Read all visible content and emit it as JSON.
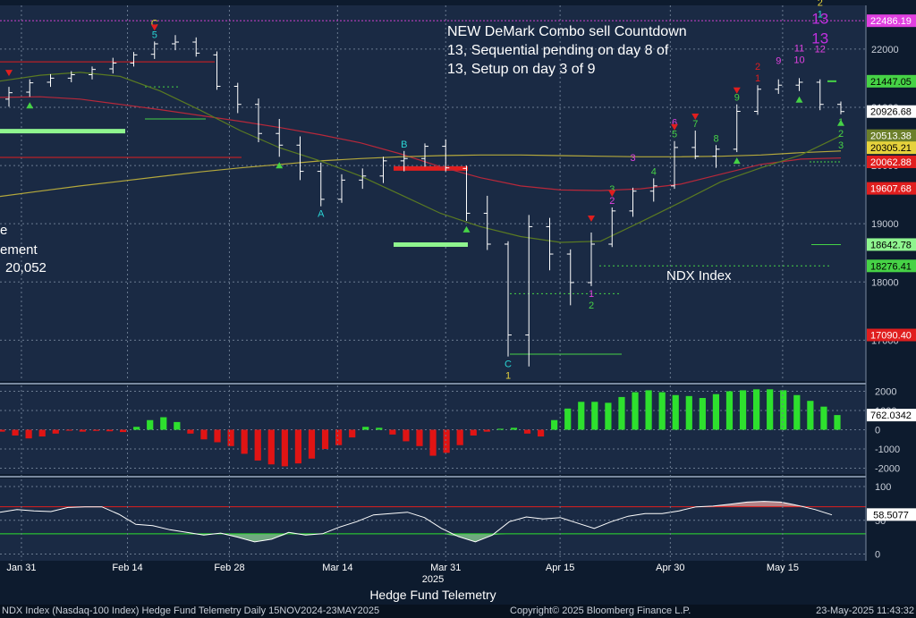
{
  "chart_data": {
    "type": "candlestick",
    "title": "NDX Index",
    "annotation_lines": [
      "NEW DeMark Combo sell Countdown",
      "13, Sequential pending on day 8 of",
      "13, Setup on day 3 of 9"
    ],
    "left_cut_text": [
      "e",
      "ement",
      "20,052"
    ],
    "x_labels": [
      "Jan 31",
      "Feb 14",
      "Feb 28",
      "Mar 14",
      "Mar 31",
      "Apr 15",
      "Apr 30",
      "May 15"
    ],
    "x_year_label": "2025",
    "price_ylim": [
      16300,
      22750
    ],
    "price_ticks": [
      17000,
      18000,
      19000,
      20000,
      21000,
      22000
    ],
    "price_tick_labels": [
      "17000",
      "18000",
      "19000",
      "20000",
      "21000",
      "22000"
    ],
    "price_last": 20926.68,
    "price_labels": [
      {
        "text": "22486.19",
        "value": 22486.19,
        "color": "#e040e0"
      },
      {
        "text": "21447.05",
        "value": 21447.05,
        "color": "#46d246"
      },
      {
        "text": "20926.68",
        "value": 20926.68,
        "color": "#ffffff"
      },
      {
        "text": "20513.38",
        "value": 20513.38,
        "color": "#6c7f2a"
      },
      {
        "text": "20305.21",
        "value": 20305.21,
        "color": "#e6d23c"
      },
      {
        "text": "20062.88",
        "value": 20062.88,
        "color": "#e01e1e"
      },
      {
        "text": "19607.68",
        "value": 19607.68,
        "color": "#e01e1e"
      },
      {
        "text": "18642.78",
        "value": 18642.78,
        "color": "#8ff58f"
      },
      {
        "text": "18276.41",
        "value": 18276.41,
        "color": "#46d246"
      },
      {
        "text": "17090.40",
        "value": 17090.4,
        "color": "#e01e1e"
      }
    ],
    "sma_yellow": [
      19470,
      19560,
      19650,
      19730,
      19810,
      19890,
      19960,
      20020,
      20080,
      20120,
      20150,
      20170,
      20180,
      20180,
      20170,
      20160,
      20150,
      20150,
      20160,
      20180,
      20220,
      20250
    ],
    "sma_red": [
      21170,
      21180,
      21140,
      21050,
      20960,
      20860,
      20760,
      20650,
      20530,
      20390,
      20200,
      19980,
      19790,
      19650,
      19580,
      19570,
      19600,
      19680,
      19850,
      20020,
      20110,
      20130
    ],
    "sma_olive": [
      21450,
      21550,
      21600,
      21530,
      21280,
      20950,
      20600,
      20300,
      20080,
      19820,
      19500,
      19180,
      18950,
      18780,
      18680,
      18700,
      19030,
      19370,
      19720,
      19960,
      20180,
      20513
    ],
    "bars": [
      [
        21140,
        21350,
        21010,
        21250
      ],
      [
        21260,
        21480,
        21180,
        21420
      ],
      [
        21430,
        21570,
        21350,
        21500
      ],
      [
        21500,
        21620,
        21430,
        21560
      ],
      [
        21560,
        21700,
        21480,
        21650
      ],
      [
        21660,
        21850,
        21580,
        21760
      ],
      [
        21760,
        21950,
        21700,
        21900
      ],
      [
        21910,
        22130,
        21830,
        22090
      ],
      [
        22090,
        22240,
        21980,
        22120
      ],
      [
        22120,
        22200,
        21870,
        21930
      ],
      [
        21900,
        21960,
        21300,
        21360
      ],
      [
        21360,
        21420,
        20900,
        21050
      ],
      [
        21050,
        21150,
        20400,
        20550
      ],
      [
        20550,
        20800,
        20150,
        20350
      ],
      [
        20350,
        20500,
        19750,
        19900
      ],
      [
        19900,
        20050,
        19300,
        19420
      ],
      [
        19420,
        19850,
        19360,
        19750
      ],
      [
        19750,
        19950,
        19600,
        19820
      ],
      [
        19820,
        20150,
        19700,
        20080
      ],
      [
        20080,
        20250,
        19900,
        20120
      ],
      [
        20120,
        20380,
        19980,
        20330
      ],
      [
        20330,
        20450,
        19900,
        19960
      ],
      [
        19950,
        20000,
        19050,
        19180
      ],
      [
        19180,
        19480,
        18550,
        18650
      ],
      [
        18650,
        18700,
        16720,
        17090
      ],
      [
        17090,
        19150,
        16550,
        18950
      ],
      [
        18950,
        19100,
        18200,
        18480
      ],
      [
        18480,
        18560,
        17600,
        17990
      ],
      [
        17990,
        18850,
        17930,
        18650
      ],
      [
        18650,
        19280,
        18600,
        19220
      ],
      [
        19220,
        19620,
        19120,
        19560
      ],
      [
        19560,
        19780,
        19380,
        19650
      ],
      [
        19650,
        20420,
        19600,
        20310
      ],
      [
        20310,
        20600,
        20110,
        20160
      ],
      [
        20160,
        20350,
        19960,
        20280
      ],
      [
        20280,
        21050,
        20230,
        20930
      ],
      [
        20930,
        21380,
        20870,
        21310
      ],
      [
        21310,
        21480,
        21230,
        21380
      ],
      [
        21380,
        21500,
        21280,
        21430
      ],
      [
        21430,
        21480,
        20950,
        21050
      ],
      [
        21050,
        21100,
        20880,
        20927
      ]
    ],
    "td_labels": [
      {
        "text": "C",
        "bar": 7,
        "pos": "above",
        "row": 2,
        "color": "#e6d23c"
      },
      {
        "text": "5",
        "bar": 7,
        "pos": "above",
        "row": 1,
        "color": "#2ad4d4"
      },
      {
        "text": "B",
        "bar": 19,
        "pos": "above",
        "row": 1,
        "color": "#2ad4d4"
      },
      {
        "text": "A",
        "bar": 15,
        "pos": "below",
        "row": 1,
        "color": "#2ad4d4"
      },
      {
        "text": "C",
        "bar": 24,
        "pos": "below",
        "row": 1,
        "color": "#2ad4d4"
      },
      {
        "text": "1",
        "bar": 24,
        "pos": "below",
        "row": 2,
        "color": "#e6d23c"
      },
      {
        "text": "1",
        "bar": 28,
        "pos": "below",
        "row": 1,
        "color": "#e040e0"
      },
      {
        "text": "2",
        "bar": 28,
        "pos": "below",
        "row": 2,
        "color": "#46d246"
      },
      {
        "text": "2",
        "bar": 29,
        "pos": "above",
        "row": 1,
        "color": "#e040e0"
      },
      {
        "text": "3",
        "bar": 29,
        "pos": "above",
        "row": 2,
        "color": "#46d246"
      },
      {
        "text": "3",
        "bar": 30,
        "pos": "above",
        "row": 3,
        "color": "#e040e0"
      },
      {
        "text": "4",
        "bar": 31,
        "pos": "above",
        "row": 1,
        "color": "#46d246"
      },
      {
        "text": "5",
        "bar": 32,
        "pos": "above",
        "row": 1,
        "color": "#46d246"
      },
      {
        "text": "6",
        "bar": 32,
        "pos": "above",
        "row": 2,
        "color": "#e040e0"
      },
      {
        "text": "7",
        "bar": 33,
        "pos": "above",
        "row": 1,
        "color": "#46d246"
      },
      {
        "text": "8",
        "bar": 34,
        "pos": "above",
        "row": 1,
        "color": "#46d246"
      },
      {
        "text": "9",
        "bar": 35,
        "pos": "above",
        "row": 1,
        "color": "#46d246"
      },
      {
        "text": "1",
        "bar": 36,
        "pos": "above",
        "row": 1,
        "color": "#e01e1e"
      },
      {
        "text": "2",
        "bar": 36,
        "pos": "above",
        "row": 2,
        "color": "#e01e1e"
      },
      {
        "text": "9",
        "bar": 37,
        "pos": "above",
        "row": 2,
        "color": "#e040e0"
      },
      {
        "text": "10",
        "bar": 38,
        "pos": "above",
        "row": 2,
        "color": "#e040e0"
      },
      {
        "text": "11",
        "bar": 38,
        "pos": "above",
        "row": 3,
        "color": "#e040e0"
      },
      {
        "text": "12",
        "bar": 39,
        "pos": "above",
        "row": 3,
        "color": "#e040e0"
      },
      {
        "text": "13",
        "bar": 39,
        "pos": "above",
        "row": 4,
        "color": "#c030e0"
      },
      {
        "text": "13",
        "bar": 39,
        "pos": "above",
        "row": 5,
        "color": "#c030e0"
      },
      {
        "text": "1",
        "bar": 39,
        "pos": "above",
        "row": 6,
        "color": "#2ad4d4"
      },
      {
        "text": "2",
        "bar": 39,
        "pos": "above",
        "row": 7,
        "color": "#e6d23c"
      },
      {
        "text": "1",
        "bar": 40,
        "pos": "below",
        "row": 1,
        "color": "#46d246"
      },
      {
        "text": "2",
        "bar": 40,
        "pos": "below",
        "row": 2,
        "color": "#46d246"
      },
      {
        "text": "3",
        "bar": 40,
        "pos": "below",
        "row": 3,
        "color": "#46d246"
      }
    ],
    "histogram": {
      "ylim": [
        -2300,
        2300
      ],
      "ticks": [
        -2000,
        -1000,
        0,
        1000,
        2000
      ],
      "tick_labels": [
        "-2000",
        "-1000",
        "0",
        "1000",
        "2000"
      ],
      "last": 762.0342,
      "values": [
        -100,
        -300,
        -450,
        -350,
        -200,
        -50,
        -100,
        -60,
        -80,
        -120,
        150,
        500,
        650,
        400,
        -200,
        -500,
        -650,
        -850,
        -1250,
        -1600,
        -1800,
        -1900,
        -1750,
        -1500,
        -1000,
        -800,
        -400,
        150,
        100,
        -250,
        -600,
        -850,
        -1350,
        -1200,
        -800,
        -300,
        -100,
        50,
        100,
        -200,
        -350,
        500,
        1100,
        1450,
        1450,
        1400,
        1700,
        1950,
        2050,
        1950,
        1800,
        1750,
        1650,
        1850,
        2000,
        2050,
        2100,
        2100,
        2050,
        1800,
        1500,
        1200,
        762
      ]
    },
    "oscillator": {
      "ylim": [
        -10,
        112
      ],
      "ticks": [
        0,
        50,
        100
      ],
      "tick_labels": [
        "0",
        "50",
        "100"
      ],
      "overbought": 70,
      "oversold": 30,
      "last": 58.5077,
      "values": [
        62,
        66,
        64,
        63,
        69,
        70,
        70,
        59,
        44,
        42,
        36,
        32,
        28,
        31,
        25,
        18,
        22,
        32,
        28,
        30,
        40,
        48,
        58,
        60,
        62,
        54,
        38,
        26,
        18,
        28,
        48,
        55,
        52,
        54,
        46,
        38,
        48,
        56,
        60,
        60,
        64,
        70,
        71,
        74,
        77,
        78,
        77,
        72,
        66,
        58
      ]
    }
  },
  "footer": {
    "center_title": "Hedge Fund Telemetry",
    "left_text": "NDX Index  (Nasdaq-100 Index) Hedge Fund Telemetry  Daily 15NOV2024-23MAY2025",
    "copyright": "Copyright© 2025 Bloomberg Finance L.P.",
    "timestamp": "23-May-2025 11:43:32"
  },
  "colors": {
    "background": "#1a2a44",
    "panel_bg": "#0d1b2e",
    "grid": "#6a7a90",
    "hist_pos": "#2ee02e",
    "hist_neg": "#e01414"
  }
}
